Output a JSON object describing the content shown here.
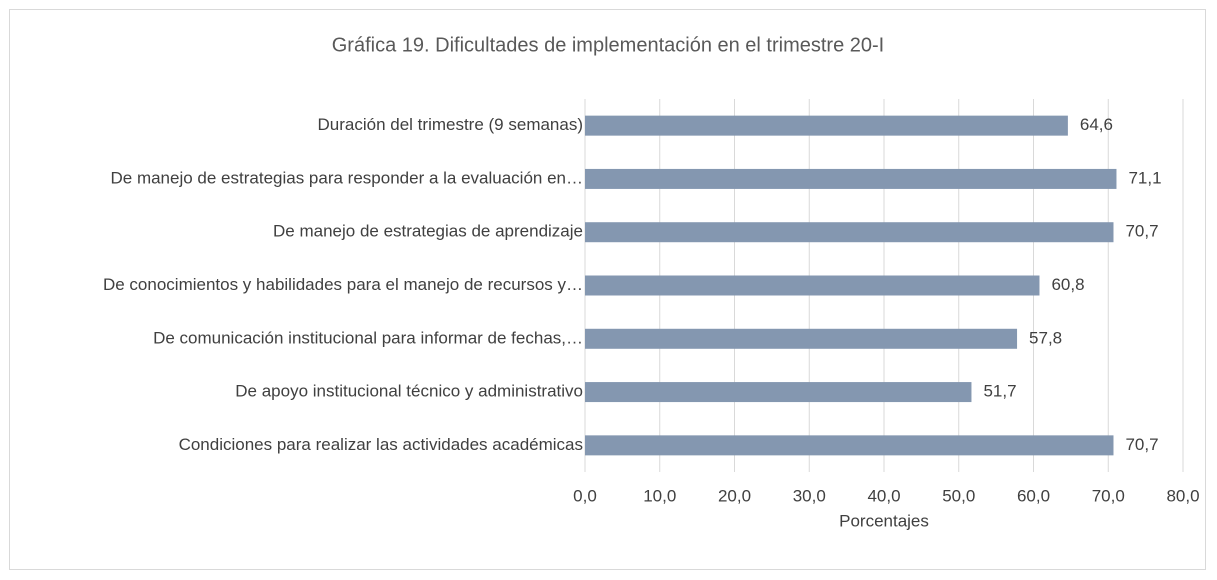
{
  "chart_data": {
    "type": "bar",
    "orientation": "horizontal",
    "title": "Gráfica 19.  Dificultades de implementación en el trimestre 20-I",
    "x_label": "Porcentajes",
    "categories": [
      "Duración del trimestre (9 semanas)",
      "De manejo de estrategias para responder a la evaluación en…",
      "De manejo de estrategias de aprendizaje",
      "De conocimientos y habilidades para el manejo de recursos y…",
      "De comunicación institucional para informar de fechas,…",
      "De apoyo institucional técnico y administrativo",
      "Condiciones para realizar las actividades académicas"
    ],
    "values": [
      64.6,
      71.1,
      70.7,
      60.8,
      57.8,
      51.7,
      70.7
    ],
    "value_labels": [
      "64,6",
      "71,1",
      "70,7",
      "60,8",
      "57,8",
      "51,7",
      "70,7"
    ],
    "color": "#8497b0",
    "xlim": [
      0,
      80
    ],
    "xticks": [
      {
        "value": 0,
        "label": "0,0"
      },
      {
        "value": 10,
        "label": "10,0"
      },
      {
        "value": 20,
        "label": "20,0"
      },
      {
        "value": 30,
        "label": "30,0"
      },
      {
        "value": 40,
        "label": "40,0"
      },
      {
        "value": 50,
        "label": "50,0"
      },
      {
        "value": 60,
        "label": "60,0"
      },
      {
        "value": 70,
        "label": "70,0"
      },
      {
        "value": 80,
        "label": "80,0"
      }
    ],
    "grid": true
  }
}
